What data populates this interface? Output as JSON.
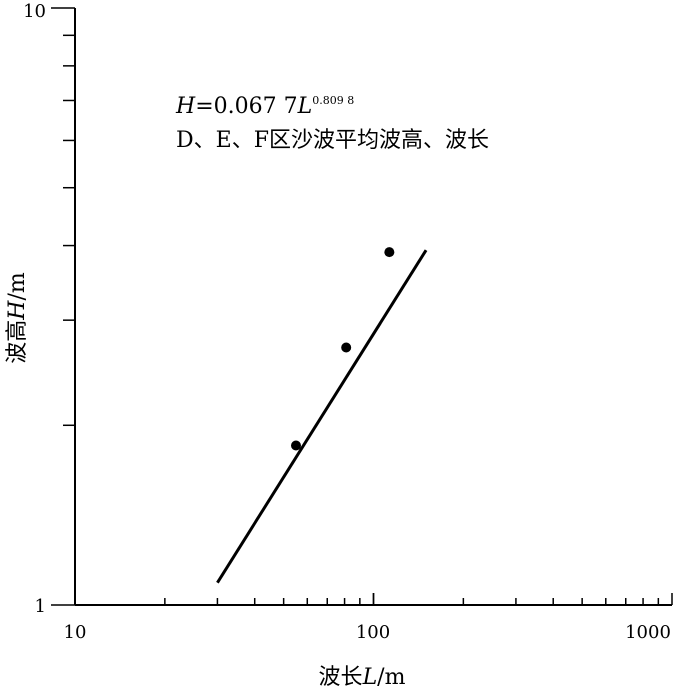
{
  "chart_data": {
    "type": "scatter",
    "xscale": "log",
    "yscale": "log",
    "xlim": [
      10,
      1000
    ],
    "ylim": [
      1,
      10
    ],
    "xticks": [
      "10",
      "100",
      "1000"
    ],
    "yticks": [
      "1",
      "10"
    ],
    "xlabel": {
      "main": "波长",
      "var": "L",
      "unit": "/m"
    },
    "ylabel": {
      "main": "波高",
      "var": "H",
      "unit": "/m"
    },
    "points": [
      {
        "x": 55,
        "y": 1.85
      },
      {
        "x": 81,
        "y": 2.7
      },
      {
        "x": 113,
        "y": 3.9
      }
    ],
    "fit_line": {
      "x_start": 30,
      "x_end": 150,
      "y_start": 1.09,
      "y_end": 3.93
    },
    "equation": {
      "lhs": "H",
      "eq": "=0.067 7",
      "var": "L",
      "exponent": "0.809 8"
    },
    "annotation": "D、E、F区沙波平均波高、波长",
    "grid": false,
    "legend": "none"
  }
}
